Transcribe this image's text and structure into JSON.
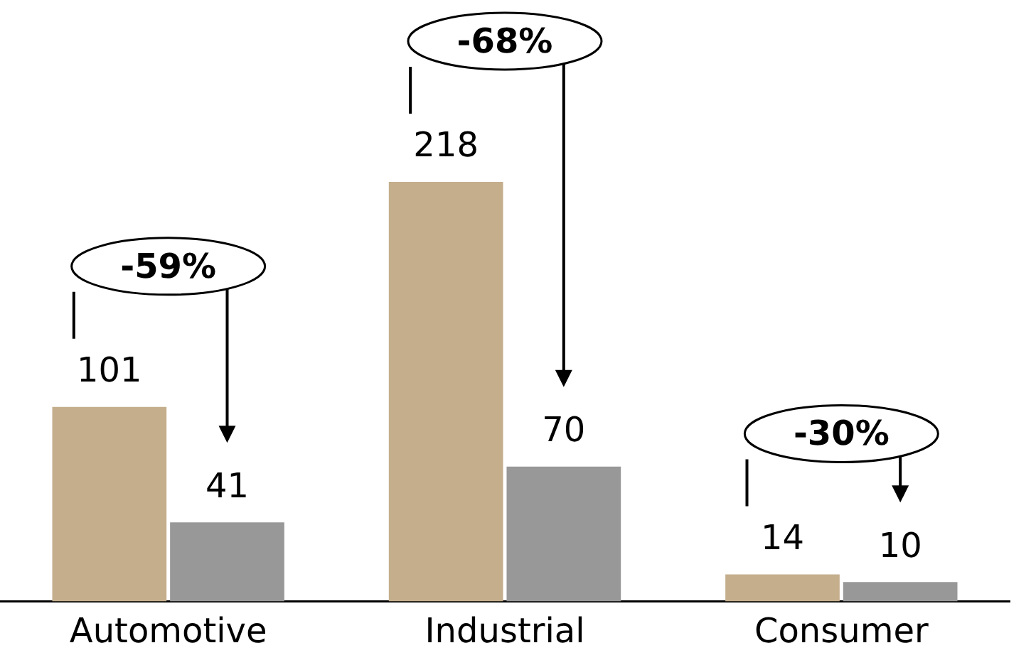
{
  "chart_data": {
    "type": "bar",
    "categories": [
      "Automotive",
      "Industrial",
      "Consumer"
    ],
    "series": [
      {
        "color": "#c4ae8c",
        "values": [
          101,
          218,
          14
        ]
      },
      {
        "color": "#989898",
        "values": [
          41,
          70,
          10
        ]
      }
    ],
    "data_labels": true,
    "grid": false,
    "legend": false,
    "tick_labels": "x",
    "annotations": [
      "-59%",
      "-68%",
      "-30%"
    ]
  }
}
